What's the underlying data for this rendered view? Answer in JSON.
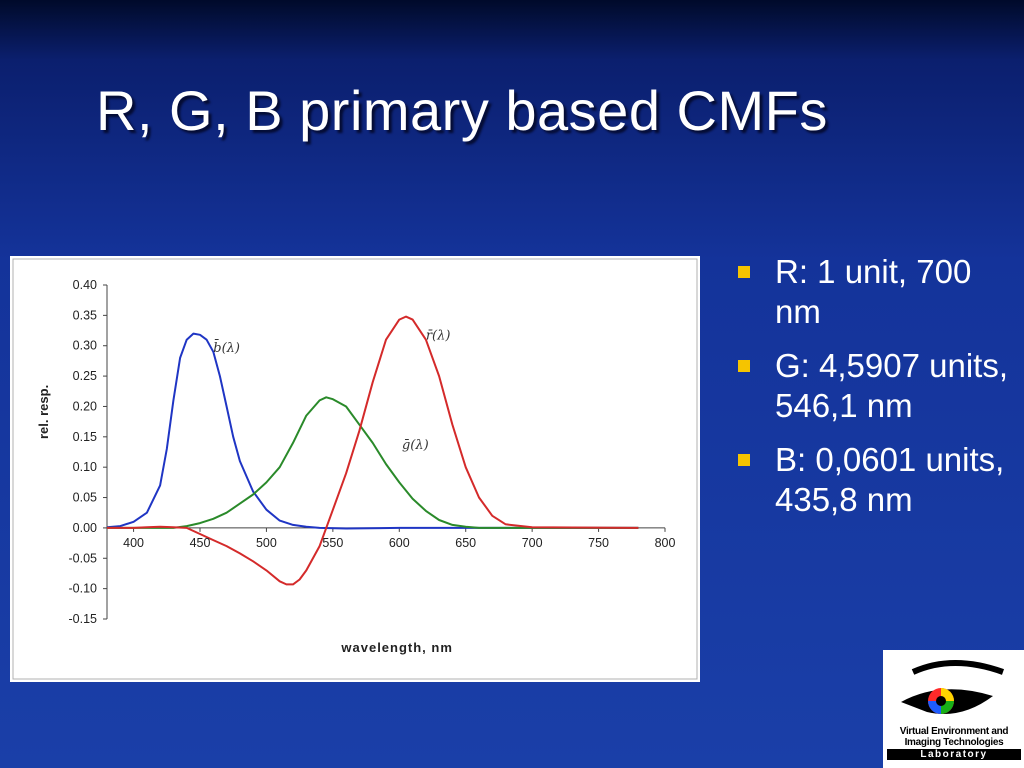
{
  "slide": {
    "title": "R, G, B primary based CMFs",
    "bullets": [
      {
        "text": "R: 1 unit, 700 nm"
      },
      {
        "text": "G: 4,5907 units, 546,1 nm"
      },
      {
        "text": "B: 0,0601 units, 435,8 nm"
      }
    ],
    "bullet_color": "#f5c400",
    "logo": {
      "line1": "Virtual Environment and",
      "line2": "Imaging Technologies",
      "line3": "Laboratory"
    }
  },
  "chart_data": {
    "type": "line",
    "title": "",
    "xlabel": "wavelength, nm",
    "ylabel": "rel. resp.",
    "xlim": [
      380,
      800
    ],
    "ylim": [
      -0.15,
      0.4
    ],
    "x_ticks": [
      "400",
      "450",
      "500",
      "550",
      "600",
      "650",
      "700",
      "750",
      "800"
    ],
    "y_ticks": [
      "0.40",
      "0.35",
      "0.30",
      "0.25",
      "0.20",
      "0.15",
      "0.10",
      "0.05",
      "0.00",
      "-0.05",
      "-0.10",
      "-0.15"
    ],
    "grid": false,
    "series": [
      {
        "name": "b̄(λ)",
        "color": "#1f35c4",
        "x": [
          380,
          390,
          400,
          410,
          420,
          425,
          430,
          435,
          440,
          445,
          450,
          455,
          460,
          465,
          470,
          475,
          480,
          490,
          500,
          510,
          520,
          530,
          540,
          560,
          600,
          700,
          780
        ],
        "y": [
          0.001,
          0.003,
          0.01,
          0.025,
          0.07,
          0.13,
          0.21,
          0.28,
          0.31,
          0.32,
          0.318,
          0.31,
          0.29,
          0.25,
          0.2,
          0.15,
          0.11,
          0.06,
          0.03,
          0.012,
          0.005,
          0.002,
          0.0,
          -0.001,
          0.0,
          0.0,
          0.0
        ]
      },
      {
        "name": "ḡ(λ)",
        "color": "#2a8a2a",
        "x": [
          380,
          410,
          420,
          430,
          440,
          450,
          460,
          470,
          480,
          490,
          500,
          510,
          520,
          530,
          540,
          545,
          550,
          560,
          570,
          580,
          590,
          600,
          610,
          620,
          630,
          640,
          650,
          660,
          700,
          780
        ],
        "y": [
          0.0,
          0.0,
          0.0,
          0.0,
          0.003,
          0.008,
          0.015,
          0.025,
          0.04,
          0.055,
          0.075,
          0.1,
          0.14,
          0.185,
          0.21,
          0.215,
          0.212,
          0.2,
          0.17,
          0.14,
          0.105,
          0.075,
          0.048,
          0.028,
          0.013,
          0.005,
          0.002,
          0.0,
          0.0,
          0.0
        ]
      },
      {
        "name": "r̄(λ)",
        "color": "#d42a2a",
        "x": [
          380,
          400,
          410,
          420,
          430,
          440,
          450,
          460,
          470,
          480,
          490,
          500,
          510,
          515,
          520,
          525,
          530,
          540,
          550,
          560,
          570,
          580,
          590,
          600,
          605,
          610,
          620,
          630,
          640,
          650,
          660,
          670,
          680,
          700,
          780
        ],
        "y": [
          0.0,
          0.0,
          0.001,
          0.002,
          0.001,
          0.0,
          -0.01,
          -0.02,
          -0.03,
          -0.042,
          -0.055,
          -0.07,
          -0.088,
          -0.093,
          -0.093,
          -0.085,
          -0.07,
          -0.03,
          0.03,
          0.09,
          0.16,
          0.24,
          0.31,
          0.343,
          0.348,
          0.343,
          0.31,
          0.25,
          0.17,
          0.1,
          0.05,
          0.02,
          0.006,
          0.001,
          0.0
        ]
      }
    ],
    "annotations": [
      {
        "text": "b̄(λ)",
        "x": 460,
        "y": 0.29
      },
      {
        "text": "ḡ(λ)",
        "x": 602,
        "y": 0.13
      },
      {
        "text": "r̄(λ)",
        "x": 620,
        "y": 0.31
      }
    ]
  }
}
